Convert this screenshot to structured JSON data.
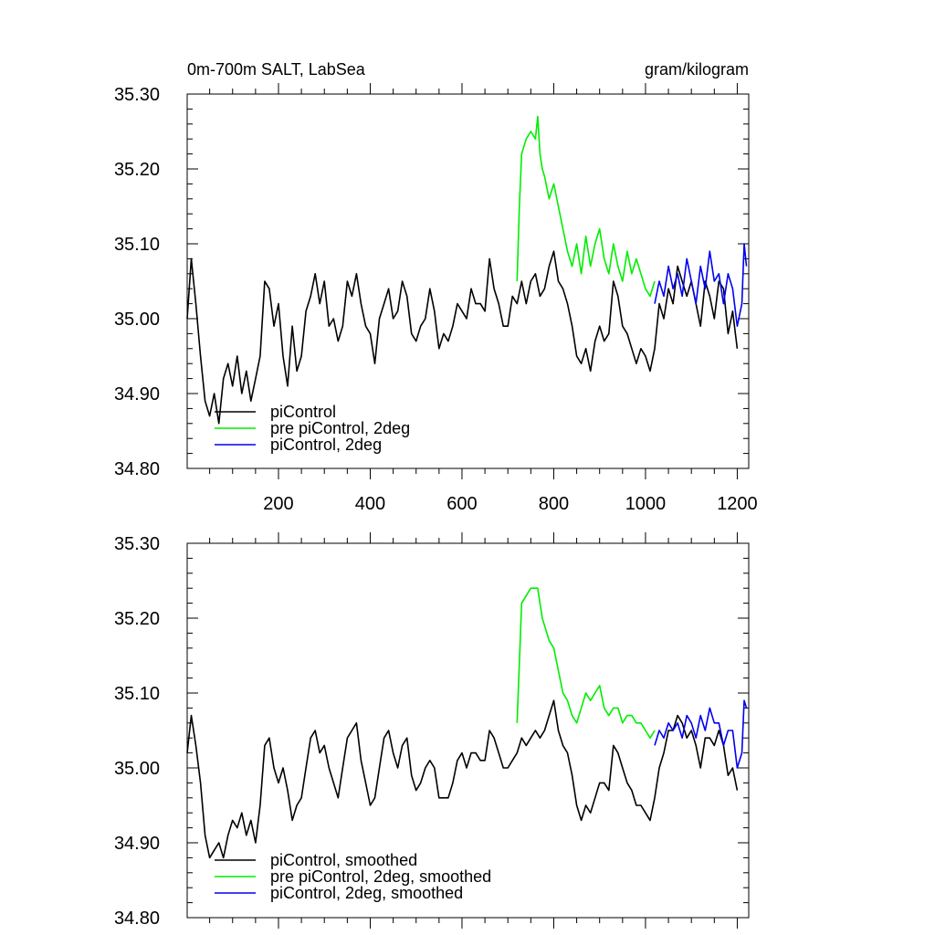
{
  "chart_data": [
    {
      "type": "line",
      "title_left": "0m-700m SALT, LabSea",
      "title_right": "gram/kilogram",
      "xlim": [
        1,
        1225
      ],
      "ylim": [
        34.8,
        35.3
      ],
      "xticks": [
        200,
        400,
        600,
        800,
        1000,
        1200
      ],
      "xtick_labels": [
        "200",
        "400",
        "600",
        "800",
        "1000",
        "1200"
      ],
      "yticks": [
        34.8,
        34.9,
        35.0,
        35.1,
        35.2,
        35.3
      ],
      "ytick_labels": [
        "34.80",
        "34.90",
        "35.00",
        "35.10",
        "35.20",
        "35.30"
      ],
      "legend_position": "bottom-left",
      "series": [
        {
          "name": "piControl",
          "color": "#000000",
          "x": [
            1,
            10,
            20,
            30,
            40,
            50,
            60,
            70,
            80,
            90,
            100,
            110,
            120,
            130,
            140,
            150,
            160,
            170,
            180,
            190,
            200,
            210,
            220,
            230,
            240,
            250,
            260,
            270,
            280,
            290,
            300,
            310,
            320,
            330,
            340,
            350,
            360,
            370,
            380,
            390,
            400,
            410,
            420,
            430,
            440,
            450,
            460,
            470,
            480,
            490,
            500,
            510,
            520,
            530,
            540,
            550,
            560,
            570,
            580,
            590,
            600,
            610,
            620,
            630,
            640,
            650,
            660,
            670,
            680,
            690,
            700,
            710,
            720,
            730,
            740,
            750,
            760,
            770,
            780,
            790,
            800,
            810,
            820,
            830,
            840,
            850,
            860,
            870,
            880,
            890,
            900,
            910,
            920,
            930,
            940,
            950,
            960,
            970,
            980,
            990,
            1000,
            1010,
            1020,
            1030,
            1040,
            1050,
            1060,
            1070,
            1080,
            1090,
            1100,
            1110,
            1120,
            1130,
            1140,
            1150,
            1160,
            1170,
            1180,
            1190,
            1200
          ],
          "y": [
            35.0,
            35.08,
            35.02,
            34.95,
            34.89,
            34.87,
            34.9,
            34.86,
            34.92,
            34.94,
            34.91,
            34.95,
            34.9,
            34.93,
            34.89,
            34.92,
            34.95,
            35.05,
            35.04,
            34.99,
            35.02,
            34.95,
            34.91,
            34.99,
            34.93,
            34.95,
            35.01,
            35.03,
            35.06,
            35.02,
            35.05,
            34.99,
            35.0,
            34.97,
            34.99,
            35.05,
            35.03,
            35.06,
            35.02,
            34.99,
            34.98,
            34.94,
            35.0,
            35.02,
            35.04,
            35.0,
            35.01,
            35.05,
            35.03,
            34.98,
            34.97,
            34.99,
            35.0,
            35.04,
            35.01,
            34.96,
            34.98,
            34.97,
            34.99,
            35.02,
            35.01,
            35.0,
            35.04,
            35.02,
            35.02,
            35.01,
            35.08,
            35.04,
            35.02,
            34.99,
            34.99,
            35.03,
            35.02,
            35.05,
            35.02,
            35.05,
            35.06,
            35.03,
            35.04,
            35.07,
            35.09,
            35.05,
            35.04,
            35.02,
            34.99,
            34.95,
            34.94,
            34.96,
            34.93,
            34.97,
            34.99,
            34.97,
            34.98,
            35.05,
            35.03,
            34.99,
            34.98,
            34.96,
            34.94,
            34.96,
            34.95,
            34.93,
            34.96,
            35.02,
            35.0,
            35.04,
            35.02,
            35.07,
            35.05,
            35.03,
            35.05,
            35.02,
            34.99,
            35.05,
            35.03,
            35.0,
            35.05,
            35.04,
            34.98,
            35.01,
            34.96
          ]
        },
        {
          "name": "pre piControl, 2deg",
          "color": "#00ee00",
          "x": [
            720,
            725,
            730,
            740,
            750,
            760,
            765,
            770,
            775,
            780,
            790,
            800,
            810,
            820,
            830,
            840,
            850,
            860,
            870,
            880,
            890,
            900,
            910,
            920,
            930,
            940,
            950,
            960,
            970,
            980,
            990,
            1000,
            1010,
            1020
          ],
          "y": [
            35.05,
            35.15,
            35.22,
            35.24,
            35.25,
            35.24,
            35.27,
            35.22,
            35.2,
            35.19,
            35.16,
            35.18,
            35.15,
            35.12,
            35.09,
            35.07,
            35.1,
            35.06,
            35.11,
            35.07,
            35.1,
            35.12,
            35.08,
            35.06,
            35.1,
            35.07,
            35.05,
            35.09,
            35.06,
            35.08,
            35.06,
            35.04,
            35.03,
            35.05
          ]
        },
        {
          "name": "piControl, 2deg",
          "color": "#0000ee",
          "x": [
            1020,
            1030,
            1040,
            1050,
            1060,
            1070,
            1080,
            1090,
            1100,
            1110,
            1120,
            1130,
            1140,
            1150,
            1160,
            1170,
            1180,
            1190,
            1200,
            1210,
            1215,
            1220
          ],
          "y": [
            35.02,
            35.05,
            35.03,
            35.07,
            35.04,
            35.06,
            35.03,
            35.08,
            35.05,
            35.02,
            35.07,
            35.04,
            35.09,
            35.05,
            35.06,
            35.02,
            35.06,
            35.04,
            34.99,
            35.02,
            35.1,
            35.07
          ]
        }
      ]
    },
    {
      "type": "line",
      "xlim": [
        1,
        1225
      ],
      "ylim": [
        34.8,
        35.3
      ],
      "xticks": [
        200,
        400,
        600,
        800,
        1000,
        1200
      ],
      "yticks": [
        34.8,
        34.9,
        35.0,
        35.1,
        35.2,
        35.3
      ],
      "ytick_labels": [
        "34.80",
        "34.90",
        "35.00",
        "35.10",
        "35.20",
        "35.30"
      ],
      "legend_position": "bottom-left",
      "series": [
        {
          "name": "piControl, smoothed",
          "color": "#000000",
          "x": [
            1,
            10,
            20,
            30,
            40,
            50,
            60,
            70,
            80,
            90,
            100,
            110,
            120,
            130,
            140,
            150,
            160,
            170,
            180,
            190,
            200,
            210,
            220,
            230,
            240,
            250,
            260,
            270,
            280,
            290,
            300,
            310,
            320,
            330,
            340,
            350,
            360,
            370,
            380,
            390,
            400,
            410,
            420,
            430,
            440,
            450,
            460,
            470,
            480,
            490,
            500,
            510,
            520,
            530,
            540,
            550,
            560,
            570,
            580,
            590,
            600,
            610,
            620,
            630,
            640,
            650,
            660,
            670,
            680,
            690,
            700,
            710,
            720,
            730,
            740,
            750,
            760,
            770,
            780,
            790,
            800,
            810,
            820,
            830,
            840,
            850,
            860,
            870,
            880,
            890,
            900,
            910,
            920,
            930,
            940,
            950,
            960,
            970,
            980,
            990,
            1000,
            1010,
            1020,
            1030,
            1040,
            1050,
            1060,
            1070,
            1080,
            1090,
            1100,
            1110,
            1120,
            1130,
            1140,
            1150,
            1160,
            1170,
            1180,
            1190,
            1200
          ],
          "y": [
            35.02,
            35.07,
            35.03,
            34.98,
            34.91,
            34.88,
            34.89,
            34.9,
            34.88,
            34.91,
            34.93,
            34.92,
            34.94,
            34.91,
            34.93,
            34.9,
            34.95,
            35.03,
            35.04,
            35.0,
            34.98,
            35.0,
            34.97,
            34.93,
            34.95,
            34.96,
            35.0,
            35.04,
            35.05,
            35.02,
            35.03,
            35.0,
            34.98,
            34.96,
            35.0,
            35.04,
            35.05,
            35.06,
            35.01,
            34.98,
            34.95,
            34.96,
            35.0,
            35.04,
            35.05,
            35.02,
            35.0,
            35.03,
            35.04,
            34.99,
            34.97,
            34.98,
            35.0,
            35.01,
            35.0,
            34.96,
            34.96,
            34.96,
            34.98,
            35.01,
            35.02,
            35.0,
            35.02,
            35.02,
            35.01,
            35.01,
            35.05,
            35.04,
            35.02,
            35.0,
            35.0,
            35.01,
            35.02,
            35.04,
            35.03,
            35.04,
            35.05,
            35.04,
            35.05,
            35.07,
            35.09,
            35.05,
            35.03,
            35.02,
            34.99,
            34.95,
            34.93,
            34.95,
            34.94,
            34.96,
            34.98,
            34.98,
            34.97,
            35.03,
            35.02,
            35.0,
            34.98,
            34.97,
            34.95,
            34.95,
            34.94,
            34.93,
            34.96,
            35.0,
            35.02,
            35.05,
            35.05,
            35.07,
            35.06,
            35.04,
            35.05,
            35.03,
            35.0,
            35.04,
            35.04,
            35.03,
            35.05,
            35.03,
            34.99,
            35.0,
            34.97
          ]
        },
        {
          "name": "pre piControl, 2deg, smoothed",
          "color": "#00ee00",
          "x": [
            720,
            725,
            730,
            740,
            750,
            760,
            765,
            770,
            775,
            780,
            790,
            800,
            810,
            820,
            830,
            840,
            850,
            860,
            870,
            880,
            890,
            900,
            910,
            920,
            930,
            940,
            950,
            960,
            970,
            980,
            990,
            1000,
            1010,
            1020
          ],
          "y": [
            35.06,
            35.14,
            35.22,
            35.23,
            35.24,
            35.24,
            35.24,
            35.22,
            35.2,
            35.19,
            35.17,
            35.16,
            35.13,
            35.1,
            35.09,
            35.07,
            35.06,
            35.08,
            35.1,
            35.09,
            35.1,
            35.11,
            35.08,
            35.07,
            35.08,
            35.08,
            35.06,
            35.07,
            35.07,
            35.06,
            35.06,
            35.05,
            35.04,
            35.05
          ]
        },
        {
          "name": "piControl, 2deg, smoothed",
          "color": "#0000ee",
          "x": [
            1020,
            1030,
            1040,
            1050,
            1060,
            1070,
            1080,
            1090,
            1100,
            1110,
            1120,
            1130,
            1140,
            1150,
            1160,
            1170,
            1180,
            1190,
            1200,
            1210,
            1215,
            1220
          ],
          "y": [
            35.03,
            35.05,
            35.04,
            35.06,
            35.05,
            35.06,
            35.04,
            35.07,
            35.06,
            35.04,
            35.07,
            35.05,
            35.08,
            35.06,
            35.06,
            35.03,
            35.05,
            35.05,
            35.0,
            35.02,
            35.09,
            35.08
          ]
        }
      ]
    }
  ]
}
